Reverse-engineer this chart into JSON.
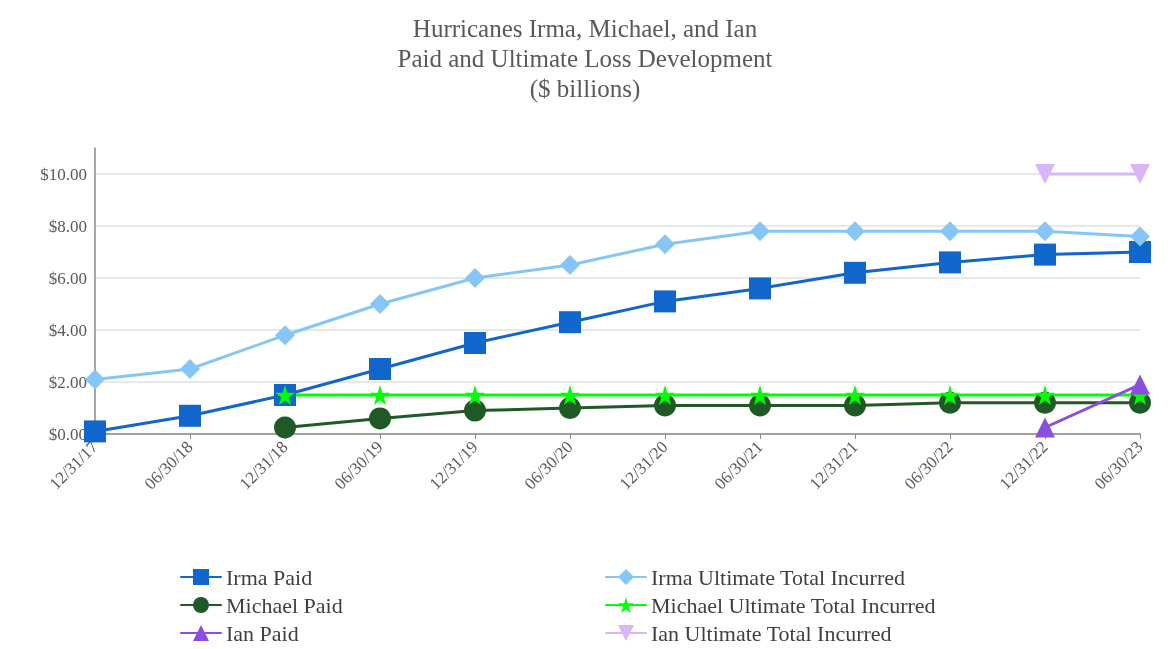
{
  "chart_data": {
    "type": "line",
    "title": "Hurricanes Irma, Michael, and Ian\nPaid and Ultimate Loss Development\n($ billions)",
    "categories": [
      "12/31/17",
      "06/30/18",
      "12/31/18",
      "06/30/19",
      "12/31/19",
      "06/30/20",
      "12/31/20",
      "06/30/21",
      "12/31/21",
      "06/30/22",
      "12/31/22",
      "06/30/23"
    ],
    "series": [
      {
        "name": "Irma Paid",
        "color": "#1166cc",
        "marker": "square",
        "values": [
          0.1,
          0.7,
          1.5,
          2.5,
          3.5,
          4.3,
          5.1,
          5.6,
          6.2,
          6.6,
          6.9,
          7.0
        ]
      },
      {
        "name": "Irma Ultimate Total Incurred",
        "color": "#85c6f7",
        "marker": "diamond",
        "values": [
          2.1,
          2.5,
          3.8,
          5.0,
          6.0,
          6.5,
          7.3,
          7.8,
          7.8,
          7.8,
          7.8,
          7.6
        ]
      },
      {
        "name": "Michael Paid",
        "color": "#1f5a26",
        "marker": "circle",
        "values": [
          null,
          null,
          0.25,
          0.6,
          0.9,
          1.0,
          1.1,
          1.1,
          1.1,
          1.2,
          1.2,
          1.2
        ]
      },
      {
        "name": "Michael Ultimate Total Incurred",
        "color": "#00ff00",
        "marker": "star",
        "values": [
          null,
          null,
          1.5,
          1.5,
          1.5,
          1.5,
          1.5,
          1.5,
          1.5,
          1.5,
          1.5,
          1.5
        ]
      },
      {
        "name": "Ian Paid",
        "color": "#8a4fe0",
        "marker": "triangle",
        "values": [
          null,
          null,
          null,
          null,
          null,
          null,
          null,
          null,
          null,
          null,
          0.25,
          1.9
        ]
      },
      {
        "name": "Ian Ultimate Total Incurred",
        "color": "#d8b4f8",
        "marker": "triangle-down",
        "values": [
          null,
          null,
          null,
          null,
          null,
          null,
          null,
          null,
          null,
          null,
          10.0,
          10.0
        ]
      }
    ],
    "ylim": [
      0,
      11
    ],
    "yticks": [
      {
        "value": 0,
        "label": "$0.00"
      },
      {
        "value": 2,
        "label": "$2.00"
      },
      {
        "value": 4,
        "label": "$4.00"
      },
      {
        "value": 6,
        "label": "$6.00"
      },
      {
        "value": 8,
        "label": "$8.00"
      },
      {
        "value": 10,
        "label": "$10.00"
      }
    ],
    "grid": "y",
    "legend": "bottom"
  }
}
